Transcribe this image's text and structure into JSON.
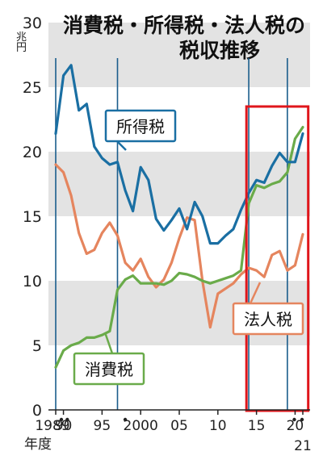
{
  "chart_data": {
    "type": "line",
    "title_lines": [
      "消費税・所得税・法人税の",
      "税収推移"
    ],
    "y_unit_top": "兆",
    "y_unit_bottom": "円",
    "ylim": [
      0,
      30
    ],
    "yticks": [
      0,
      5,
      10,
      15,
      20,
      25,
      30
    ],
    "xlim": [
      1989,
      2021
    ],
    "xticks": [
      {
        "value": 1989,
        "label": "1989"
      },
      {
        "value": 1990,
        "label": "90"
      },
      {
        "value": 1995,
        "label": "95"
      },
      {
        "value": 2000,
        "label": "2000"
      },
      {
        "value": 2005,
        "label": "05"
      },
      {
        "value": 2010,
        "label": "10"
      },
      {
        "value": 2015,
        "label": "15"
      },
      {
        "value": 2020,
        "label": "20"
      },
      {
        "value": 2021,
        "label": "21"
      }
    ],
    "x_axis_label": "年度",
    "grid": "alternating gray bands",
    "colors": {
      "income": "#1a6fa3",
      "corporate": "#e5855e",
      "consumption": "#6aab4a",
      "vline": "#1a5d8c",
      "highlight": "#e0161b",
      "band": "#e3e3e3"
    },
    "vertical_markers": [
      1989,
      1997,
      2014,
      2019
    ],
    "highlight_range": [
      2013.7,
      2021.7
    ],
    "x": [
      1989,
      1990,
      1991,
      1992,
      1993,
      1994,
      1995,
      1996,
      1997,
      1998,
      1999,
      2000,
      2001,
      2002,
      2003,
      2004,
      2005,
      2006,
      2007,
      2008,
      2009,
      2010,
      2011,
      2012,
      2013,
      2014,
      2015,
      2016,
      2017,
      2018,
      2019,
      2020,
      2021
    ],
    "series": [
      {
        "key": "income",
        "name": "所得税",
        "values": [
          21.4,
          25.9,
          26.7,
          23.2,
          23.7,
          20.4,
          19.5,
          19.0,
          19.2,
          17.0,
          15.4,
          18.8,
          17.8,
          14.8,
          13.9,
          14.7,
          15.6,
          14.0,
          16.1,
          15.0,
          12.9,
          12.9,
          13.5,
          14.0,
          15.5,
          16.8,
          17.8,
          17.6,
          18.9,
          19.9,
          19.2,
          19.2,
          21.4
        ]
      },
      {
        "key": "corporate",
        "name": "法人税",
        "values": [
          19.0,
          18.4,
          16.6,
          13.7,
          12.1,
          12.4,
          13.7,
          14.5,
          13.5,
          11.4,
          10.8,
          11.7,
          10.3,
          9.5,
          10.1,
          11.4,
          13.3,
          14.9,
          14.7,
          10.0,
          6.4,
          9.0,
          9.4,
          9.8,
          10.5,
          11.0,
          10.8,
          10.3,
          12.0,
          12.3,
          10.8,
          11.2,
          13.6
        ]
      },
      {
        "key": "consumption",
        "name": "消費税",
        "values": [
          3.3,
          4.6,
          5.0,
          5.2,
          5.6,
          5.6,
          5.8,
          6.1,
          9.3,
          10.1,
          10.4,
          9.8,
          9.8,
          9.8,
          9.7,
          10.0,
          10.6,
          10.5,
          10.3,
          10.0,
          9.8,
          10.0,
          10.2,
          10.4,
          10.8,
          16.0,
          17.4,
          17.2,
          17.5,
          17.7,
          18.4,
          21.0,
          21.9
        ]
      }
    ],
    "annotations": [
      {
        "series": "income",
        "text": "所得税"
      },
      {
        "series": "corporate",
        "text": "法人税"
      },
      {
        "series": "consumption",
        "text": "消費税"
      }
    ]
  }
}
